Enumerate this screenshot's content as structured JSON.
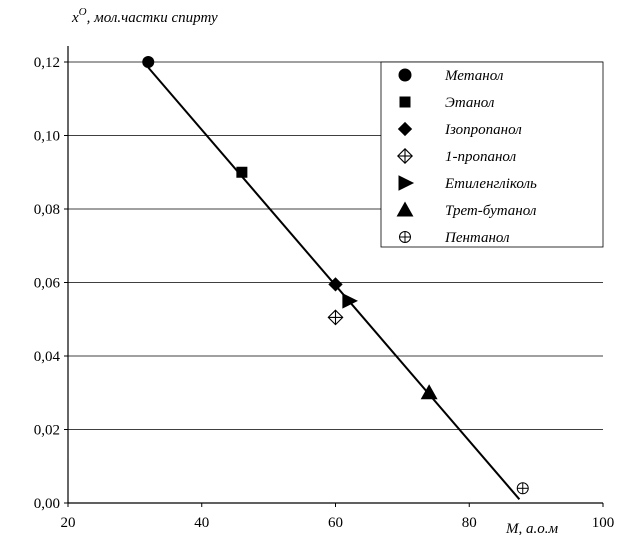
{
  "chart_data": {
    "type": "scatter",
    "ylabel_sup": "O",
    "ylabel_rest": ", мол.частки спирту",
    "ylabel_var": "x",
    "xlabel": "M, а.о.м",
    "xlim": [
      20,
      100
    ],
    "ylim": [
      0.0,
      0.12
    ],
    "x_ticks": [
      {
        "value": 20,
        "label": "20"
      },
      {
        "value": 40,
        "label": "40"
      },
      {
        "value": 60,
        "label": "60"
      },
      {
        "value": 80,
        "label": "80"
      },
      {
        "value": 100,
        "label": "100"
      }
    ],
    "y_ticks": [
      {
        "value": 0.0,
        "label": "0,00"
      },
      {
        "value": 0.02,
        "label": "0,02"
      },
      {
        "value": 0.04,
        "label": "0,04"
      },
      {
        "value": 0.06,
        "label": "0,06"
      },
      {
        "value": 0.08,
        "label": "0,08"
      },
      {
        "value": 0.1,
        "label": "0,10"
      },
      {
        "value": 0.12,
        "label": "0,12"
      }
    ],
    "grid": "horizontal",
    "legend_position": "top-right",
    "series": [
      {
        "name": "Метанол",
        "marker": "circle",
        "points": [
          {
            "x": 32,
            "y": 0.12
          }
        ]
      },
      {
        "name": "Этанол",
        "marker": "square",
        "points": [
          {
            "x": 46,
            "y": 0.09
          }
        ]
      },
      {
        "name": "Ізопропанол",
        "marker": "diamond",
        "points": [
          {
            "x": 60,
            "y": 0.0595
          }
        ]
      },
      {
        "name": "1-пропанол",
        "marker": "circle-cross",
        "points": [
          {
            "x": 60,
            "y": 0.0505
          }
        ]
      },
      {
        "name": "Етиленгліколь",
        "marker": "triangle-right",
        "points": [
          {
            "x": 62,
            "y": 0.055
          }
        ]
      },
      {
        "name": "Трет-бутанол",
        "marker": "triangle-up",
        "points": [
          {
            "x": 74,
            "y": 0.03
          }
        ]
      },
      {
        "name": "Пентанол",
        "marker": "circle-plus",
        "points": [
          {
            "x": 88,
            "y": 0.004
          }
        ]
      }
    ],
    "trendline": {
      "from": {
        "x": 32,
        "y": 0.1185
      },
      "to": {
        "x": 87.5,
        "y": 0.001
      }
    }
  }
}
